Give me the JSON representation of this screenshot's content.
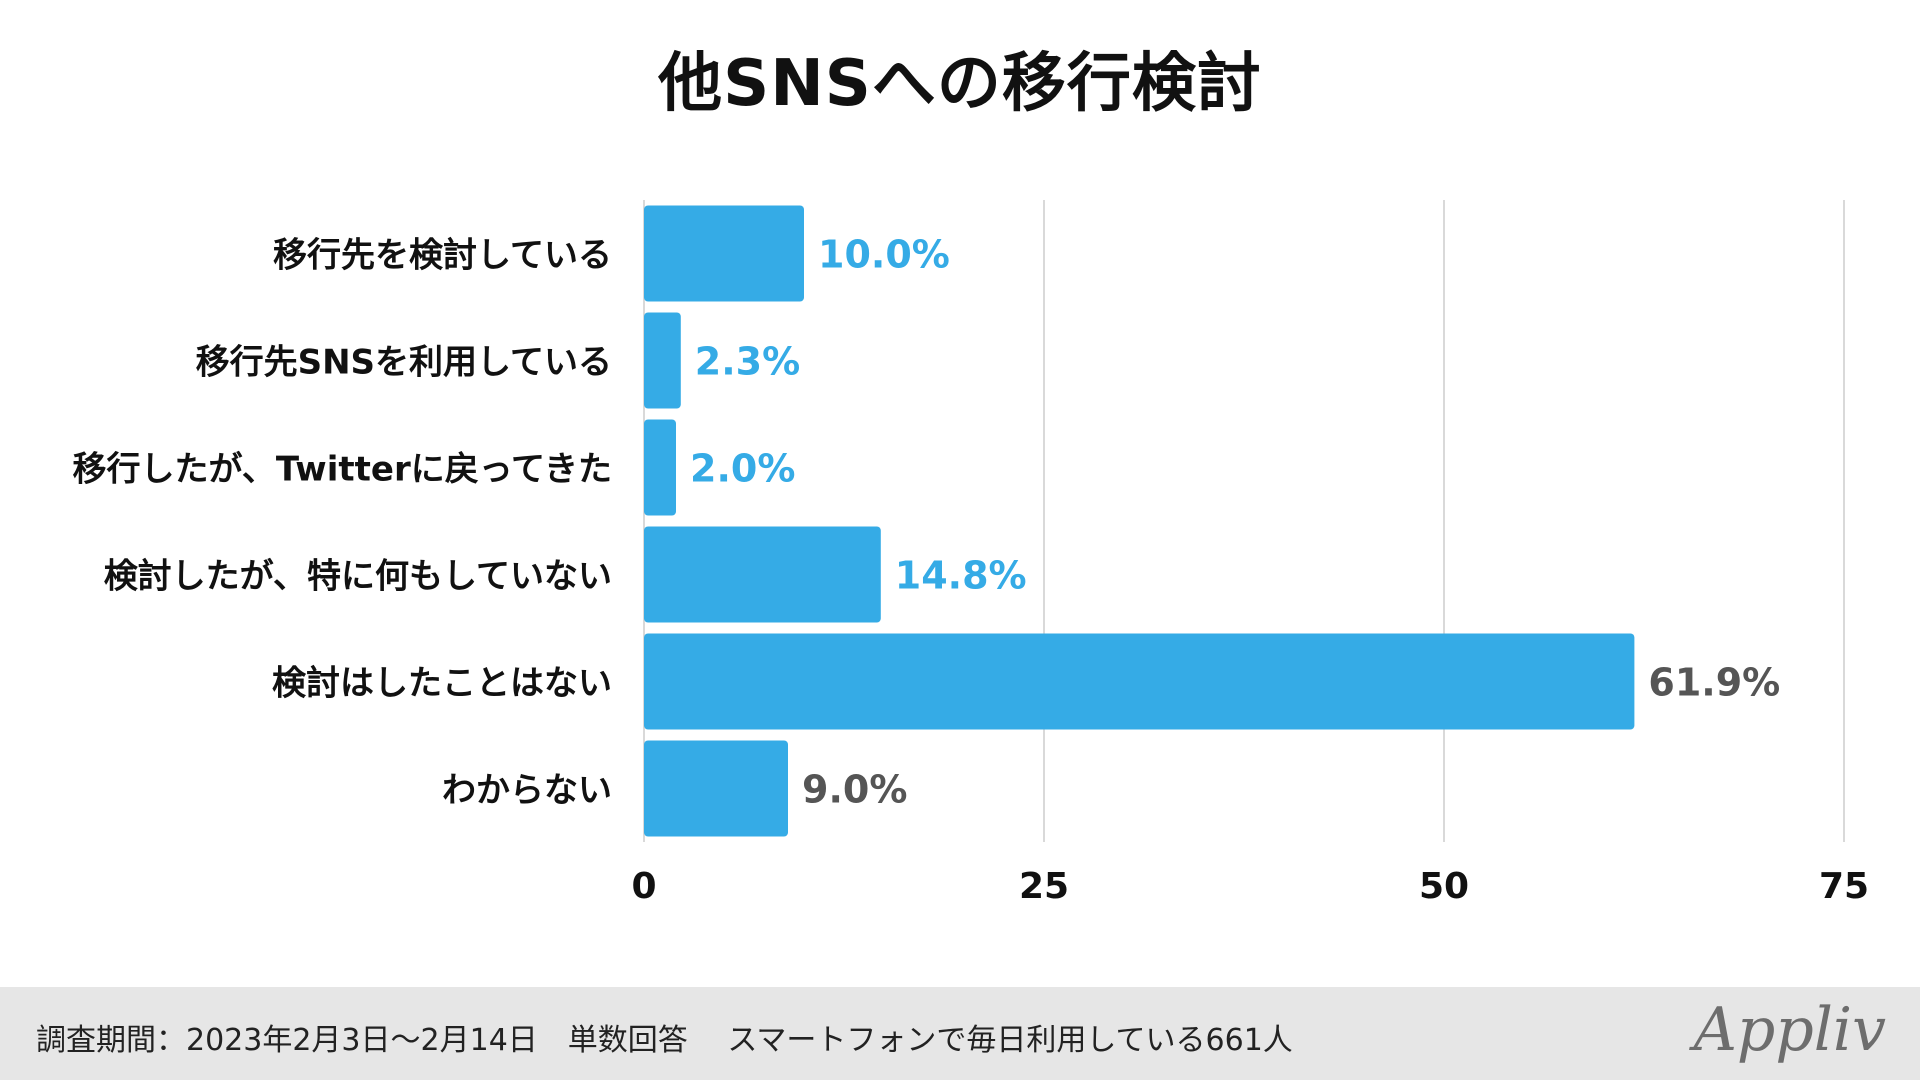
{
  "title": "他SNSへの移行検討",
  "chart_data": {
    "type": "bar",
    "orientation": "horizontal",
    "title": "他SNSへの移行検討",
    "categories": [
      "移行先を検討している",
      "移行先SNSを利用している",
      "移行したが、Twitterに戻ってきた",
      "検討したが、特に何もしていない",
      "検討はしたことはない",
      "わからない"
    ],
    "values": [
      10.0,
      2.3,
      2.0,
      14.8,
      61.9,
      9.0
    ],
    "value_labels": [
      "10.0%",
      "2.3%",
      "2.0%",
      "14.8%",
      "61.9%",
      "9.0%"
    ],
    "xlim": [
      0,
      75
    ],
    "xticks": [
      0,
      25,
      50,
      75
    ],
    "xtick_labels": [
      "0",
      "25",
      "50",
      "75"
    ],
    "grid": true,
    "legend": "none",
    "bar_color": "#35abe6",
    "highlight_label_color": "#35abe6",
    "normal_label_color": "#555555"
  },
  "footer": {
    "text": "調査期間：2023年2月3日〜2月14日　単数回答　 スマートフォンで毎日利用している661人",
    "logo": "Appliv"
  }
}
